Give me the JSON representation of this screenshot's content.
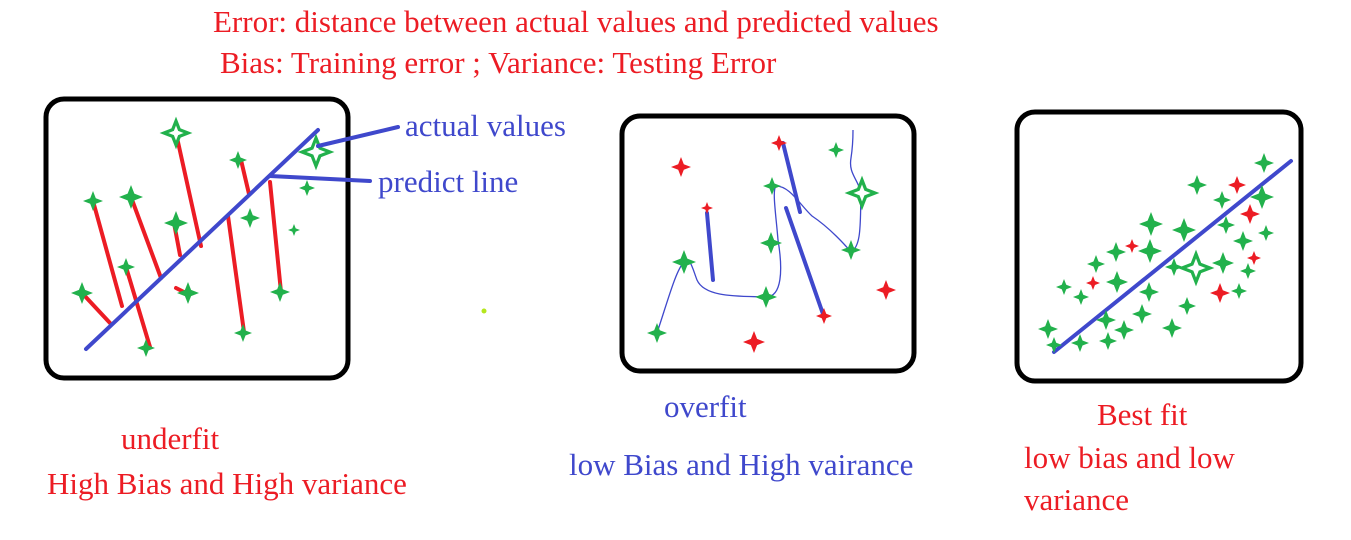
{
  "header": {
    "line1": "Error: distance between actual values and predicted values",
    "line2": "Bias: Training error ; Variance: Testing Error"
  },
  "annotations": {
    "actual_values": "actual values",
    "predict_line": "predict line"
  },
  "panels": {
    "underfit": {
      "title": "underfit",
      "subtitle": "High Bias and High variance"
    },
    "overfit": {
      "title": "overfit",
      "subtitle": "low Bias and High vairance"
    },
    "bestfit": {
      "title": "Best fit",
      "subtitle_line1": "low bias and low",
      "subtitle_line2": "variance"
    }
  },
  "colors": {
    "text_red": "#ec1c24",
    "text_blue": "#3f48cc",
    "point_green": "#22b14c",
    "point_red": "#ec1c24",
    "frame": "#000000"
  },
  "icons": {
    "actual_point": "four-point-star-icon"
  }
}
